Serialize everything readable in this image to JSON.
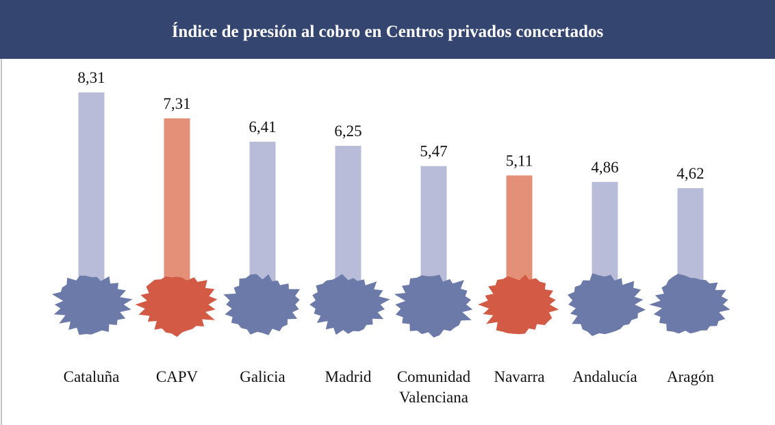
{
  "chart_data": {
    "type": "bar",
    "title": "Índice de presión al cobro en Centros privados concertados",
    "categories": [
      "Cataluña",
      "CAPV",
      "Galicia",
      "Madrid",
      "Comunidad Valenciana",
      "Navarra",
      "Andalucía",
      "Aragón"
    ],
    "values": [
      8.31,
      7.31,
      6.41,
      6.25,
      5.47,
      5.11,
      4.86,
      4.62
    ],
    "value_labels": [
      "8,31",
      "7,31",
      "6,41",
      "6,25",
      "5,47",
      "5,11",
      "4,86",
      "4,62"
    ],
    "colors": [
      "#b8bcd8",
      "#e48f78",
      "#b8bcd8",
      "#b8bcd8",
      "#b8bcd8",
      "#e48f78",
      "#b8bcd8",
      "#b8bcd8"
    ],
    "shape_colors": [
      "#6b7aa8",
      "#d35a45",
      "#6b7aa8",
      "#6b7aa8",
      "#6b7aa8",
      "#d35a45",
      "#6b7aa8",
      "#6b7aa8"
    ],
    "ylim": [
      0,
      10
    ]
  }
}
